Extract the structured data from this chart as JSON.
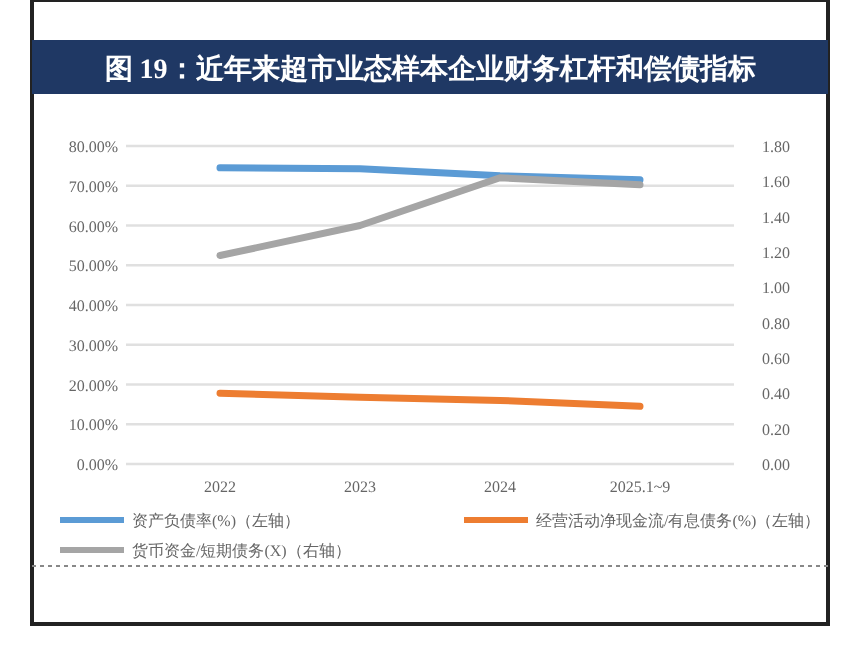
{
  "chart_data": {
    "type": "line",
    "title": "图 19：近年来超市业态样本企业财务杠杆和偿债指标",
    "categories": [
      "2022",
      "2023",
      "2024",
      "2025.1~9"
    ],
    "series": [
      {
        "name": "资产负债率(%)（左轴）",
        "color": "#5b9bd5",
        "values": [
          74.5,
          74.3,
          72.5,
          71.5
        ]
      },
      {
        "name": "经营活动净现金流/有息债务(%)（左轴）",
        "color": "#ed7d31",
        "values": [
          17.8,
          16.8,
          16.0,
          14.5
        ]
      },
      {
        "name": "货币资金/短期债务(X)（右轴）",
        "color": "#a5a5a5",
        "values": [
          1.18,
          1.35,
          1.62,
          1.58
        ],
        "axis": "y2"
      }
    ],
    "ylim": [
      0,
      80
    ],
    "yticks": [
      {
        "value": 0,
        "label": "0.00%"
      },
      {
        "value": 10,
        "label": "10.00%"
      },
      {
        "value": 20,
        "label": "20.00%"
      },
      {
        "value": 30,
        "label": "30.00%"
      },
      {
        "value": 40,
        "label": "40.00%"
      },
      {
        "value": 50,
        "label": "50.00%"
      },
      {
        "value": 60,
        "label": "60.00%"
      },
      {
        "value": 70,
        "label": "70.00%"
      },
      {
        "value": 80,
        "label": "80.00%"
      }
    ],
    "y2lim": [
      0,
      1.8
    ],
    "y2ticks": [
      {
        "value": 0,
        "label": "0.00"
      },
      {
        "value": 0.2,
        "label": "0.20"
      },
      {
        "value": 0.4,
        "label": "0.40"
      },
      {
        "value": 0.6,
        "label": "0.60"
      },
      {
        "value": 0.8,
        "label": "0.80"
      },
      {
        "value": 1,
        "label": "1.00"
      },
      {
        "value": 1.2,
        "label": "1.20"
      },
      {
        "value": 1.4,
        "label": "1.40"
      },
      {
        "value": 1.6,
        "label": "1.60"
      },
      {
        "value": 1.8,
        "label": "1.80"
      }
    ],
    "grid": "y",
    "legend": "bottom",
    "line_style": "solid",
    "marker": "none"
  }
}
